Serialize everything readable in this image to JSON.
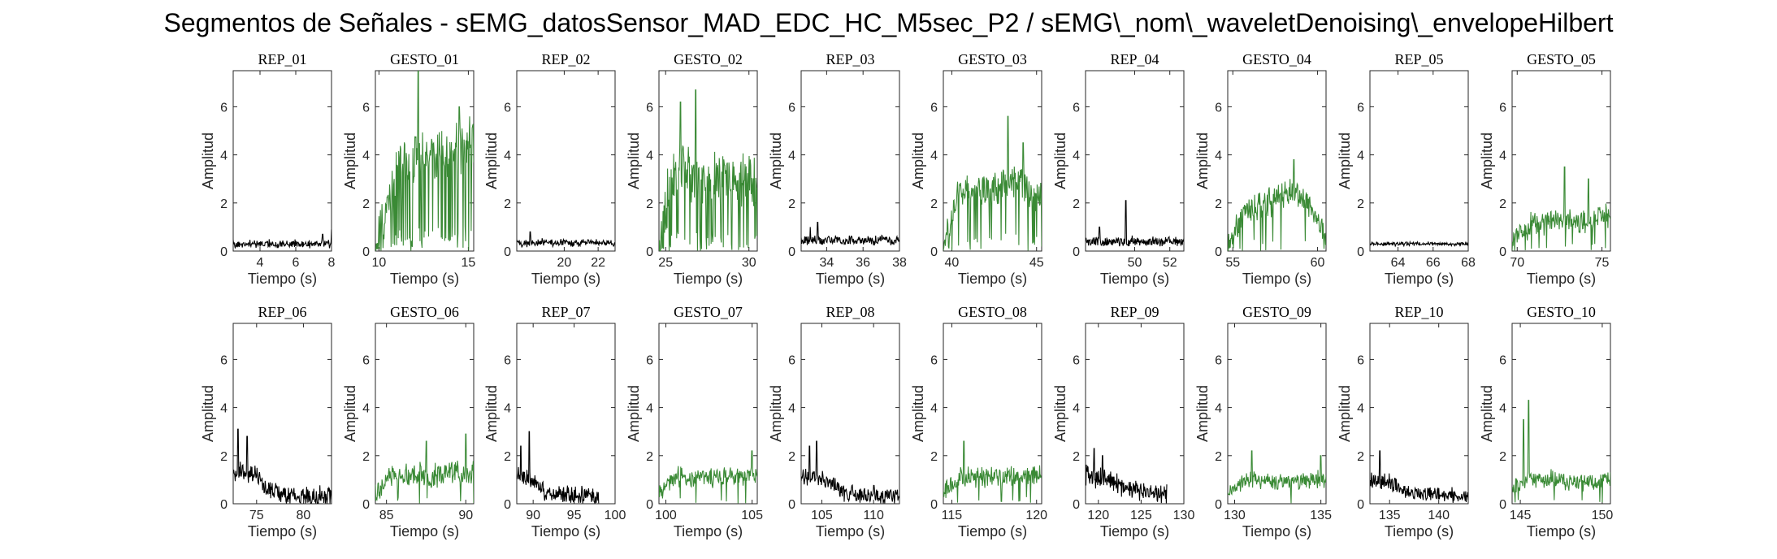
{
  "figure_title": "Segmentos de Señales - sEMG_datosSensor_MAD_EDC_HC_M5sec_P2 / sEMG\\_nom\\_waveletDenoising\\_envelopeHilbert",
  "colors": {
    "rep": "#000000",
    "gesto": "#3a8a35",
    "axes": "#262626"
  },
  "chart_data": [
    {
      "title": "REP_01",
      "type": "line",
      "color": "rep",
      "x_range": [
        2.5,
        8
      ],
      "ylim": [
        0,
        7.5
      ],
      "xticks": [
        4,
        6,
        8
      ],
      "yticks": [
        0,
        2,
        4,
        6
      ],
      "xlabel": "Tiempo (s)",
      "ylabel": "Amplitud",
      "base": 0.3,
      "noise": 0.2,
      "peaks": [
        [
          8,
          0.9
        ],
        [
          7.5,
          0.7
        ]
      ],
      "seed": 11
    },
    {
      "title": "GESTO_01",
      "type": "line",
      "color": "gesto",
      "x_range": [
        9.8,
        15.3
      ],
      "ylim": [
        0,
        7.5
      ],
      "xticks": [
        10,
        15
      ],
      "yticks": [
        0,
        2,
        4,
        6
      ],
      "xlabel": "Tiempo (s)",
      "ylabel": "Amplitud",
      "ramp": [
        [
          9.8,
          0.3
        ],
        [
          10.4,
          1.5
        ],
        [
          11,
          3.5
        ],
        [
          12,
          3.8
        ],
        [
          13,
          4
        ],
        [
          14,
          4
        ],
        [
          15.3,
          4.5
        ]
      ],
      "noise": 1.3,
      "dropouts": 0.25,
      "peaks": [
        [
          12.2,
          7.5
        ],
        [
          14.5,
          6
        ]
      ],
      "seed": 12
    },
    {
      "title": "REP_02",
      "type": "line",
      "color": "rep",
      "x_range": [
        17.2,
        23
      ],
      "ylim": [
        0,
        7.5
      ],
      "xticks": [
        20,
        22
      ],
      "yticks": [
        0,
        2,
        4,
        6
      ],
      "xlabel": "Tiempo (s)",
      "ylabel": "Amplitud",
      "base": 0.35,
      "noise": 0.2,
      "peaks": [
        [
          18,
          0.8
        ]
      ],
      "seed": 13
    },
    {
      "title": "GESTO_02",
      "type": "line",
      "color": "gesto",
      "x_range": [
        24.6,
        30.5
      ],
      "ylim": [
        0,
        7.5
      ],
      "xticks": [
        25,
        30
      ],
      "yticks": [
        0,
        2,
        4,
        6
      ],
      "xlabel": "Tiempo (s)",
      "ylabel": "Amplitud",
      "ramp": [
        [
          24.6,
          0.4
        ],
        [
          25.3,
          3
        ],
        [
          26,
          3.5
        ],
        [
          27,
          3.2
        ],
        [
          28.5,
          3
        ],
        [
          30.5,
          3
        ]
      ],
      "noise": 1.4,
      "dropouts": 0.2,
      "peaks": [
        [
          26.8,
          6.7
        ],
        [
          25.9,
          6.2
        ]
      ],
      "seed": 14
    },
    {
      "title": "REP_03",
      "type": "line",
      "color": "rep",
      "x_range": [
        32.6,
        38
      ],
      "ylim": [
        0,
        7.5
      ],
      "xticks": [
        34,
        36,
        38
      ],
      "yticks": [
        0,
        2,
        4,
        6
      ],
      "xlabel": "Tiempo (s)",
      "ylabel": "Amplitud",
      "base": 0.45,
      "noise": 0.25,
      "peaks": [
        [
          33.5,
          1.2
        ],
        [
          33.1,
          1
        ]
      ],
      "seed": 15
    },
    {
      "title": "GESTO_03",
      "type": "line",
      "color": "gesto",
      "x_range": [
        39.5,
        45.3
      ],
      "ylim": [
        0,
        7.5
      ],
      "xticks": [
        40,
        45
      ],
      "yticks": [
        0,
        2,
        4,
        6
      ],
      "xlabel": "Tiempo (s)",
      "ylabel": "Amplitud",
      "ramp": [
        [
          39.5,
          0.4
        ],
        [
          40.4,
          2.5
        ],
        [
          42,
          2.5
        ],
        [
          43.5,
          3
        ],
        [
          45.3,
          2.3
        ]
      ],
      "noise": 0.9,
      "dropouts": 0.1,
      "peaks": [
        [
          43.3,
          5.6
        ],
        [
          44.2,
          4.5
        ]
      ],
      "seed": 16
    },
    {
      "title": "REP_04",
      "type": "line",
      "color": "rep",
      "x_range": [
        47.2,
        52.8
      ],
      "ylim": [
        0,
        7.5
      ],
      "xticks": [
        50,
        52
      ],
      "yticks": [
        0,
        2,
        4,
        6
      ],
      "xlabel": "Tiempo (s)",
      "ylabel": "Amplitud",
      "base": 0.4,
      "noise": 0.25,
      "peaks": [
        [
          49.5,
          2.1
        ],
        [
          48,
          1
        ]
      ],
      "seed": 17
    },
    {
      "title": "GESTO_04",
      "type": "line",
      "color": "gesto",
      "x_range": [
        54.7,
        60.5
      ],
      "ylim": [
        0,
        7.5
      ],
      "xticks": [
        55,
        60
      ],
      "yticks": [
        0,
        2,
        4,
        6
      ],
      "xlabel": "Tiempo (s)",
      "ylabel": "Amplitud",
      "ramp": [
        [
          54.7,
          0.2
        ],
        [
          55.8,
          1.8
        ],
        [
          57,
          2
        ],
        [
          58.5,
          2.5
        ],
        [
          59.5,
          2
        ],
        [
          60.5,
          0.5
        ]
      ],
      "noise": 0.7,
      "dropouts": 0.05,
      "peaks": [
        [
          58.6,
          3.8
        ]
      ],
      "seed": 18
    },
    {
      "title": "REP_05",
      "type": "line",
      "color": "rep",
      "x_range": [
        62.4,
        68
      ],
      "ylim": [
        0,
        7.5
      ],
      "xticks": [
        64,
        66,
        68
      ],
      "yticks": [
        0,
        2,
        4,
        6
      ],
      "xlabel": "Tiempo (s)",
      "ylabel": "Amplitud",
      "base": 0.3,
      "noise": 0.1,
      "peaks": [],
      "seed": 19
    },
    {
      "title": "GESTO_05",
      "type": "line",
      "color": "gesto",
      "x_range": [
        69.7,
        75.5
      ],
      "ylim": [
        0,
        7.5
      ],
      "xticks": [
        70,
        75
      ],
      "yticks": [
        0,
        2,
        4,
        6
      ],
      "xlabel": "Tiempo (s)",
      "ylabel": "Amplitud",
      "ramp": [
        [
          69.7,
          0.3
        ],
        [
          70.6,
          1
        ],
        [
          72,
          1.3
        ],
        [
          74,
          1.2
        ],
        [
          75.5,
          1.5
        ]
      ],
      "noise": 0.6,
      "dropouts": 0.05,
      "peaks": [
        [
          72.8,
          3.5
        ],
        [
          74.2,
          3
        ]
      ],
      "seed": 20
    },
    {
      "title": "REP_06",
      "type": "line",
      "color": "rep",
      "x_range": [
        72.5,
        83
      ],
      "ylim": [
        0,
        7.5
      ],
      "xticks": [
        75,
        80
      ],
      "yticks": [
        0,
        2,
        4,
        6
      ],
      "xlabel": "Tiempo (s)",
      "ylabel": "Amplitud",
      "ramp": [
        [
          72.5,
          1.3
        ],
        [
          75,
          1.2
        ],
        [
          76,
          0.6
        ],
        [
          78,
          0.35
        ],
        [
          83,
          0.3
        ]
      ],
      "noise": 0.5,
      "peaks": [
        [
          73,
          3.1
        ],
        [
          74,
          2.8
        ]
      ],
      "seed": 21
    },
    {
      "title": "GESTO_06",
      "type": "line",
      "color": "gesto",
      "x_range": [
        84.3,
        90.5
      ],
      "ylim": [
        0,
        7.5
      ],
      "xticks": [
        85,
        90
      ],
      "yticks": [
        0,
        2,
        4,
        6
      ],
      "xlabel": "Tiempo (s)",
      "ylabel": "Amplitud",
      "ramp": [
        [
          84.3,
          0.4
        ],
        [
          85.2,
          1.2
        ],
        [
          88,
          1.2
        ],
        [
          90.5,
          1.3
        ]
      ],
      "noise": 0.6,
      "dropouts": 0.05,
      "peaks": [
        [
          90,
          2.9
        ],
        [
          87.5,
          2.6
        ]
      ],
      "seed": 22
    },
    {
      "title": "REP_07",
      "type": "line",
      "color": "rep",
      "x_range": [
        88,
        100
      ],
      "ylim": [
        0,
        7.5
      ],
      "xticks": [
        90,
        95,
        100
      ],
      "yticks": [
        0,
        2,
        4,
        6
      ],
      "xlabel": "Tiempo (s)",
      "ylabel": "Amplitud",
      "ramp": [
        [
          88,
          1.2
        ],
        [
          90,
          1
        ],
        [
          91.5,
          0.5
        ],
        [
          93,
          0.4
        ],
        [
          98,
          0.3
        ]
      ],
      "end": 98,
      "noise": 0.45,
      "peaks": [
        [
          89.5,
          3
        ],
        [
          88.5,
          2.4
        ]
      ],
      "seed": 23
    },
    {
      "title": "GESTO_07",
      "type": "line",
      "color": "gesto",
      "x_range": [
        99.6,
        105.3
      ],
      "ylim": [
        0,
        7.5
      ],
      "xticks": [
        100,
        105
      ],
      "yticks": [
        0,
        2,
        4,
        6
      ],
      "xlabel": "Tiempo (s)",
      "ylabel": "Amplitud",
      "ramp": [
        [
          99.6,
          0.5
        ],
        [
          100.5,
          1.1
        ],
        [
          103,
          1.1
        ],
        [
          105.3,
          1.2
        ]
      ],
      "noise": 0.5,
      "dropouts": 0.05,
      "peaks": [
        [
          105,
          2.2
        ]
      ],
      "seed": 24
    },
    {
      "title": "REP_08",
      "type": "line",
      "color": "rep",
      "x_range": [
        103,
        112.5
      ],
      "ylim": [
        0,
        7.5
      ],
      "xticks": [
        105,
        110
      ],
      "yticks": [
        0,
        2,
        4,
        6
      ],
      "xlabel": "Tiempo (s)",
      "ylabel": "Amplitud",
      "ramp": [
        [
          103,
          1.1
        ],
        [
          105,
          1.1
        ],
        [
          106.5,
          0.6
        ],
        [
          108,
          0.4
        ],
        [
          112.5,
          0.3
        ]
      ],
      "noise": 0.45,
      "peaks": [
        [
          104.5,
          2.6
        ],
        [
          103.8,
          2.4
        ]
      ],
      "seed": 25
    },
    {
      "title": "GESTO_08",
      "type": "line",
      "color": "gesto",
      "x_range": [
        114.5,
        120.3
      ],
      "ylim": [
        0,
        7.5
      ],
      "xticks": [
        115,
        120
      ],
      "yticks": [
        0,
        2,
        4,
        6
      ],
      "xlabel": "Tiempo (s)",
      "ylabel": "Amplitud",
      "ramp": [
        [
          114.5,
          0.4
        ],
        [
          115.4,
          1.1
        ],
        [
          118,
          1.1
        ],
        [
          120.3,
          1.2
        ]
      ],
      "noise": 0.55,
      "dropouts": 0.05,
      "peaks": [
        [
          115.7,
          2.6
        ]
      ],
      "seed": 26
    },
    {
      "title": "REP_09",
      "type": "line",
      "color": "rep",
      "x_range": [
        118.5,
        130
      ],
      "ylim": [
        0,
        7.5
      ],
      "xticks": [
        120,
        125,
        130
      ],
      "yticks": [
        0,
        2,
        4,
        6
      ],
      "xlabel": "Tiempo (s)",
      "ylabel": "Amplitud",
      "ramp": [
        [
          118.5,
          1.2
        ],
        [
          121,
          1
        ],
        [
          123,
          0.7
        ],
        [
          128,
          0.4
        ]
      ],
      "end": 128,
      "noise": 0.5,
      "peaks": [
        [
          119.5,
          2.3
        ],
        [
          120.5,
          2
        ]
      ],
      "seed": 27
    },
    {
      "title": "GESTO_09",
      "type": "line",
      "color": "gesto",
      "x_range": [
        129.6,
        135.3
      ],
      "ylim": [
        0,
        7.5
      ],
      "xticks": [
        130,
        135
      ],
      "yticks": [
        0,
        2,
        4,
        6
      ],
      "xlabel": "Tiempo (s)",
      "ylabel": "Amplitud",
      "ramp": [
        [
          129.6,
          0.4
        ],
        [
          130.5,
          1
        ],
        [
          133,
          0.9
        ],
        [
          135.3,
          1
        ]
      ],
      "noise": 0.45,
      "dropouts": 0.04,
      "peaks": [
        [
          131,
          2.2
        ],
        [
          135,
          2
        ]
      ],
      "seed": 28
    },
    {
      "title": "REP_10",
      "type": "line",
      "color": "rep",
      "x_range": [
        133,
        143
      ],
      "ylim": [
        0,
        7.5
      ],
      "xticks": [
        135,
        140
      ],
      "yticks": [
        0,
        2,
        4,
        6
      ],
      "xlabel": "Tiempo (s)",
      "ylabel": "Amplitud",
      "ramp": [
        [
          133,
          1
        ],
        [
          135,
          0.9
        ],
        [
          136.5,
          0.5
        ],
        [
          143,
          0.3
        ]
      ],
      "noise": 0.4,
      "peaks": [
        [
          134,
          2.2
        ]
      ],
      "seed": 29
    },
    {
      "title": "GESTO_10",
      "type": "line",
      "color": "gesto",
      "x_range": [
        144.5,
        150.5
      ],
      "ylim": [
        0,
        7.5
      ],
      "xticks": [
        145,
        150
      ],
      "yticks": [
        0,
        2,
        4,
        6
      ],
      "xlabel": "Tiempo (s)",
      "ylabel": "Amplitud",
      "ramp": [
        [
          144.5,
          0.6
        ],
        [
          145.6,
          1.1
        ],
        [
          148,
          0.9
        ],
        [
          150.5,
          1
        ]
      ],
      "noise": 0.45,
      "dropouts": 0.03,
      "peaks": [
        [
          145.5,
          4.3
        ],
        [
          145.2,
          3.5
        ]
      ],
      "seed": 30
    }
  ]
}
